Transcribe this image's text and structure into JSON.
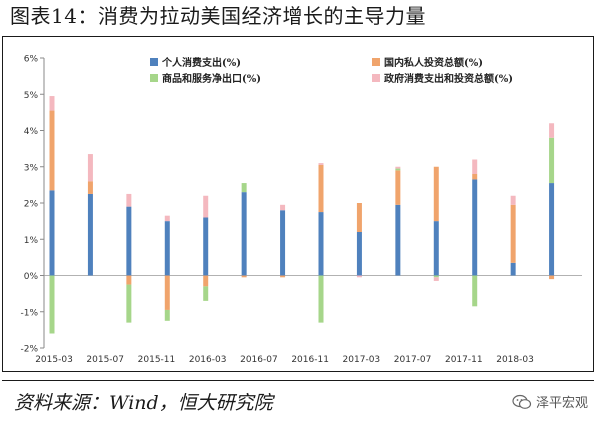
{
  "title": "图表14：消费为拉动美国经济增长的主导力量",
  "source": "资料来源：Wind，恒大研究院",
  "watermark": "泽平宏观",
  "colors": {
    "consumption": "#4f81bd",
    "investment": "#f0a46c",
    "net_exports": "#a6d68a",
    "government": "#f4b8bf"
  },
  "chart_data": {
    "type": "bar",
    "stacked": true,
    "ylim": [
      -2,
      6
    ],
    "yticks": [
      "-2%",
      "-1%",
      "0%",
      "1%",
      "2%",
      "3%",
      "4%",
      "5%",
      "6%"
    ],
    "xtick_labels": [
      "2015-03",
      "2015-07",
      "2015-11",
      "2016-03",
      "2016-07",
      "2016-11",
      "2017-03",
      "2017-07",
      "2017-11",
      "2018-03"
    ],
    "legend": [
      "个人消费支出(%)",
      "国内私人投资总额(%)",
      "商品和服务净出口(%)",
      "政府消费支出和投资总额(%)"
    ],
    "legend_position": "top",
    "categories": [
      "2015Q1",
      "2015Q2",
      "2015Q3",
      "2015Q4",
      "2016Q1",
      "2016Q2",
      "2016Q3",
      "2016Q4",
      "2017Q1",
      "2017Q2",
      "2017Q3",
      "2017Q4",
      "2018Q1",
      "2018Q2"
    ],
    "series": [
      {
        "name": "个人消费支出(%)",
        "key": "consumption",
        "values": [
          2.35,
          2.25,
          1.9,
          1.5,
          1.6,
          2.3,
          1.8,
          1.75,
          1.2,
          1.95,
          1.5,
          2.65,
          0.35,
          2.55
        ]
      },
      {
        "name": "国内私人投资总额(%)",
        "key": "investment",
        "values": [
          2.2,
          0.35,
          -0.25,
          -0.95,
          -0.3,
          -0.05,
          -0.05,
          1.3,
          0.8,
          0.95,
          1.5,
          0.15,
          1.6,
          -0.1
        ]
      },
      {
        "name": "商品和服务净出口(%)",
        "key": "net_exports",
        "values": [
          -1.6,
          0.0,
          -1.05,
          -0.3,
          -0.4,
          0.25,
          0.0,
          -1.3,
          0.0,
          0.05,
          -0.05,
          -0.85,
          0.0,
          1.25
        ]
      },
      {
        "name": "政府消费支出和投资总额(%)",
        "key": "government",
        "values": [
          0.4,
          0.75,
          0.35,
          0.15,
          0.6,
          0.0,
          0.15,
          0.05,
          -0.05,
          0.05,
          -0.1,
          0.4,
          0.25,
          0.4
        ]
      }
    ]
  }
}
